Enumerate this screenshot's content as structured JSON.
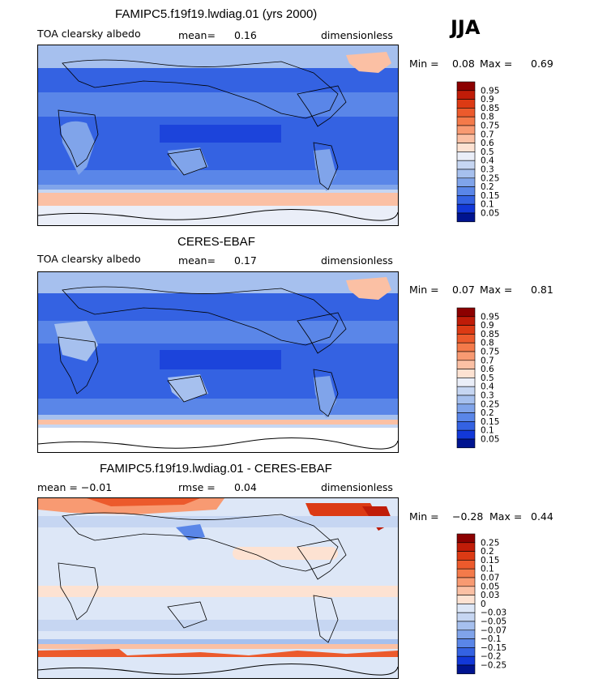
{
  "season": "JJA",
  "panels": [
    {
      "title": "FAMIPC5.f19f19.lwdiag.01 (yrs 2000)",
      "left": "TOA clearsky albedo",
      "mid_label": "mean=",
      "mid_value": "0.16",
      "right": "dimensionless",
      "min_label": "Min =",
      "min_value": "0.08",
      "max_label": "Max =",
      "max_value": "0.69",
      "legend_labels": [
        "0.95",
        "0.9",
        "0.85",
        "0.8",
        "0.75",
        "0.7",
        "0.6",
        "0.5",
        "0.4",
        "0.3",
        "0.25",
        "0.2",
        "0.15",
        "0.1",
        "0.05"
      ],
      "legend_colors": [
        "#8c0000",
        "#c01c08",
        "#dc3a14",
        "#ec5a2c",
        "#f47a4a",
        "#f89a72",
        "#fbc0a4",
        "#fde2d2",
        "#eaeef8",
        "#c6d6f2",
        "#a6c0ee",
        "#80a4ea",
        "#5a86e8",
        "#3462e2",
        "#1238d8",
        "#001490"
      ]
    },
    {
      "title": "CERES-EBAF",
      "left": "TOA clearsky albedo",
      "mid_label": "mean=",
      "mid_value": "0.17",
      "right": "dimensionless",
      "min_label": "Min =",
      "min_value": "0.07",
      "max_label": "Max =",
      "max_value": "0.81",
      "legend_labels": [
        "0.95",
        "0.9",
        "0.85",
        "0.8",
        "0.75",
        "0.7",
        "0.6",
        "0.5",
        "0.4",
        "0.3",
        "0.25",
        "0.2",
        "0.15",
        "0.1",
        "0.05"
      ],
      "legend_colors": [
        "#8c0000",
        "#c01c08",
        "#dc3a14",
        "#ec5a2c",
        "#f47a4a",
        "#f89a72",
        "#fbc0a4",
        "#fde2d2",
        "#eaeef8",
        "#c6d6f2",
        "#a6c0ee",
        "#80a4ea",
        "#5a86e8",
        "#3462e2",
        "#1238d8",
        "#001490"
      ]
    },
    {
      "title": "FAMIPC5.f19f19.lwdiag.01 - CERES-EBAF",
      "left": "mean =   −0.01",
      "mid_label": "rmse =",
      "mid_value": "0.04",
      "right": "dimensionless",
      "min_label": "Min =",
      "min_value": "−0.28",
      "max_label": "Max =",
      "max_value": "0.44",
      "legend_labels": [
        "0.25",
        "0.2",
        "0.15",
        "0.1",
        "0.07",
        "0.05",
        "0.03",
        "0",
        "−0.03",
        "−0.05",
        "−0.07",
        "−0.1",
        "−0.15",
        "−0.2",
        "−0.25"
      ],
      "legend_colors": [
        "#8c0000",
        "#c01c08",
        "#dc3a14",
        "#ec5a2c",
        "#f47a4a",
        "#f89a72",
        "#fbc0a4",
        "#fde2d2",
        "#dde7f7",
        "#c6d6f2",
        "#a6c0ee",
        "#80a4ea",
        "#5a86e8",
        "#3462e2",
        "#1238d8",
        "#001490"
      ]
    }
  ]
}
